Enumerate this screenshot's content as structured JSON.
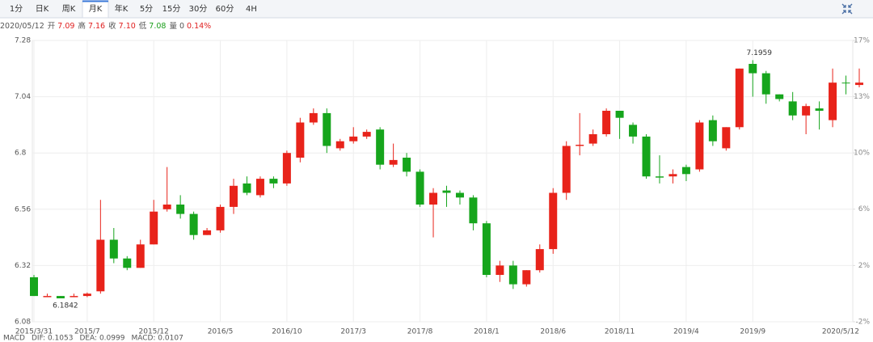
{
  "toolbar": {
    "tabs": [
      "1分",
      "日K",
      "周K",
      "月K",
      "年K",
      "5分",
      "15分",
      "30分",
      "60分",
      "4H"
    ],
    "selected": "月K"
  },
  "info": {
    "date": "2020/05/12",
    "items": [
      {
        "label": "开",
        "value": "7.09",
        "color": "#e02020"
      },
      {
        "label": "高",
        "value": "7.16",
        "color": "#e02020"
      },
      {
        "label": "收",
        "value": "7.10",
        "color": "#e02020"
      },
      {
        "label": "低",
        "value": "7.08",
        "color": "#1a9e1a"
      },
      {
        "label": "量",
        "value": "0",
        "color": "#555"
      },
      {
        "label": null,
        "value": "0.14%",
        "color": "#e02020"
      }
    ]
  },
  "chart_data": {
    "type": "candlestick",
    "categories": [
      "2015/3/31",
      null,
      null,
      null,
      "2015/7",
      null,
      null,
      null,
      null,
      "2015/12",
      null,
      null,
      null,
      null,
      "2016/5",
      null,
      null,
      null,
      null,
      "2016/10",
      null,
      null,
      null,
      null,
      "2017/3",
      null,
      null,
      null,
      null,
      "2017/8",
      null,
      null,
      null,
      null,
      "2018/1",
      null,
      null,
      null,
      null,
      "2018/6",
      null,
      null,
      null,
      null,
      "2018/11",
      null,
      null,
      null,
      null,
      "2019/4",
      null,
      null,
      null,
      null,
      "2019/9",
      null,
      null,
      null,
      null,
      null,
      null,
      null,
      "2020/5/12"
    ],
    "open": [
      6.27,
      6.185,
      6.19,
      6.185,
      6.19,
      6.21,
      6.43,
      6.35,
      6.31,
      6.41,
      6.56,
      6.58,
      6.54,
      6.45,
      6.47,
      6.57,
      6.67,
      6.62,
      6.69,
      6.67,
      6.78,
      6.93,
      6.97,
      6.82,
      6.85,
      6.87,
      6.9,
      6.75,
      6.78,
      6.72,
      6.58,
      6.64,
      6.63,
      6.61,
      6.5,
      6.28,
      6.32,
      6.24,
      6.3,
      6.39,
      6.63,
      6.83,
      6.84,
      6.88,
      6.98,
      6.92,
      6.87,
      6.7,
      6.7,
      6.74,
      6.73,
      6.94,
      6.82,
      6.91,
      7.18,
      7.14,
      7.05,
      7.02,
      6.96,
      6.99,
      6.94,
      7.1,
      7.09
    ],
    "high": [
      6.28,
      6.2,
      6.19,
      6.2,
      6.205,
      6.6,
      6.48,
      6.36,
      6.43,
      6.6,
      6.74,
      6.62,
      6.55,
      6.48,
      6.58,
      6.69,
      6.7,
      6.7,
      6.7,
      6.81,
      6.95,
      6.99,
      6.99,
      6.86,
      6.91,
      6.9,
      6.91,
      6.84,
      6.8,
      6.73,
      6.65,
      6.66,
      6.64,
      6.62,
      6.51,
      6.34,
      6.34,
      6.3,
      6.41,
      6.65,
      6.85,
      6.97,
      6.9,
      6.99,
      6.98,
      6.93,
      6.88,
      6.79,
      6.73,
      6.75,
      6.94,
      6.96,
      6.91,
      7.16,
      7.1959,
      7.15,
      7.05,
      7.06,
      7.01,
      7.02,
      7.16,
      7.13,
      7.16
    ],
    "low": [
      6.19,
      6.19,
      6.1842,
      6.185,
      6.185,
      6.2,
      6.33,
      6.3,
      6.31,
      6.41,
      6.55,
      6.52,
      6.43,
      6.45,
      6.46,
      6.54,
      6.62,
      6.61,
      6.65,
      6.66,
      6.76,
      6.92,
      6.8,
      6.81,
      6.84,
      6.86,
      6.73,
      6.74,
      6.7,
      6.57,
      6.44,
      6.57,
      6.58,
      6.47,
      6.27,
      6.25,
      6.22,
      6.23,
      6.29,
      6.37,
      6.6,
      6.79,
      6.83,
      6.87,
      6.86,
      6.84,
      6.69,
      6.67,
      6.67,
      6.68,
      6.72,
      6.83,
      6.81,
      6.9,
      7.04,
      7.01,
      7.02,
      6.94,
      6.88,
      6.9,
      6.91,
      7.05,
      7.08
    ],
    "close": [
      6.19,
      6.19,
      6.18,
      6.19,
      6.2,
      6.43,
      6.35,
      6.31,
      6.41,
      6.55,
      6.58,
      6.54,
      6.45,
      6.47,
      6.57,
      6.66,
      6.63,
      6.69,
      6.67,
      6.8,
      6.93,
      6.97,
      6.83,
      6.85,
      6.87,
      6.89,
      6.75,
      6.77,
      6.72,
      6.58,
      6.63,
      6.63,
      6.61,
      6.5,
      6.28,
      6.32,
      6.24,
      6.3,
      6.39,
      6.63,
      6.83,
      6.835,
      6.88,
      6.98,
      6.95,
      6.87,
      6.7,
      6.695,
      6.71,
      6.71,
      6.93,
      6.85,
      6.91,
      7.16,
      7.14,
      7.05,
      7.03,
      6.96,
      7.0,
      6.98,
      7.1,
      7.1,
      7.1
    ],
    "up_color": "#e8231a",
    "down_color": "#16a51c",
    "annotations": [
      "7.1959",
      "6.1842"
    ],
    "ylim": [
      6.08,
      7.28
    ],
    "yticks": [
      6.08,
      6.32,
      6.56,
      6.8,
      7.04,
      7.28
    ],
    "y2lim": [
      -2.0,
      17.34
    ],
    "y2ticks": [
      {
        "value": -2.0,
        "label": "-2%"
      },
      {
        "value": 1.87,
        "label": "2%"
      },
      {
        "value": 5.74,
        "label": "6%"
      },
      {
        "value": 9.61,
        "label": "10%"
      },
      {
        "value": 13.48,
        "label": "13%"
      },
      {
        "value": 17.34,
        "label": "17%"
      }
    ],
    "grid": true
  },
  "macd": [
    {
      "text": "MACD",
      "color": "#7a8cb0"
    },
    {
      "text": "DIF: 0.1053",
      "color": "#3a78d8"
    },
    {
      "text": "DEA: 0.0999",
      "color": "#d848d8"
    },
    {
      "text": "MACD: 0.0107",
      "color": "#d83a3a"
    }
  ]
}
